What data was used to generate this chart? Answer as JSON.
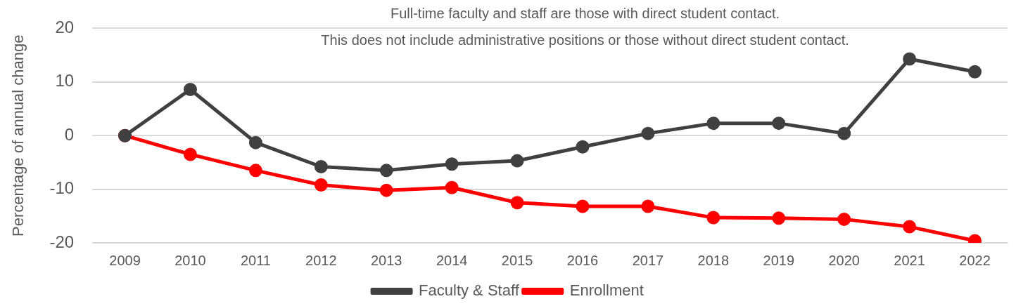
{
  "chart_data": {
    "type": "line",
    "ylabel": "Percentage of annual change",
    "annotations": [
      "Full-time faculty and staff are those with direct student contact.",
      "This does not include administrative positions or those without direct student contact."
    ],
    "categories": [
      "2009",
      "2010",
      "2011",
      "2012",
      "2013",
      "2014",
      "2015",
      "2016",
      "2017",
      "2018",
      "2019",
      "2020",
      "2021",
      "2022"
    ],
    "series": [
      {
        "name": "Faculty & Staff",
        "color": "#404040",
        "values": [
          0,
          8.6,
          -1.3,
          -5.8,
          -6.5,
          -5.3,
          -4.7,
          -2.1,
          0.4,
          2.3,
          2.3,
          0.4,
          14.3,
          11.9
        ]
      },
      {
        "name": "Enrollment",
        "color": "#ff0000",
        "values": [
          0,
          -3.5,
          -6.5,
          -9.2,
          -10.2,
          -9.7,
          -12.5,
          -13.2,
          -13.2,
          -15.3,
          -15.4,
          -15.6,
          -17.0,
          -19.6
        ]
      }
    ],
    "ylim": [
      -20,
      20
    ],
    "yticks": [
      -20,
      -10,
      0,
      10,
      20
    ],
    "grid": "y",
    "legend": "bottom",
    "marker": "circle",
    "line_style": "solid"
  }
}
